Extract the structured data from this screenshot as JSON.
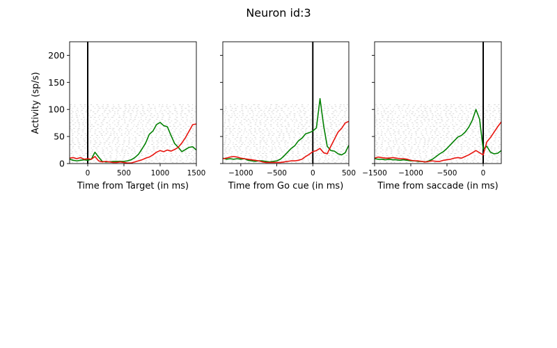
{
  "title": "Neuron id:3",
  "ylabel": "Activity (sp/s)",
  "colors": {
    "green": "#008000",
    "red": "#e8120c",
    "raster": "#c8c8c8",
    "event_line": "#000000"
  },
  "chart_data": [
    {
      "type": "line",
      "xlabel": "Time from Target (in ms)",
      "xlim": [
        -250,
        1500
      ],
      "ylim": [
        0,
        225
      ],
      "xticks": [
        0,
        500,
        1000,
        1500
      ],
      "yticks": [
        0,
        50,
        100,
        150,
        200
      ],
      "event_x": 0,
      "raster_ymax": 110,
      "series": [
        {
          "color": "green",
          "x": [
            -250,
            -200,
            -150,
            -100,
            -50,
            0,
            50,
            100,
            150,
            200,
            250,
            300,
            350,
            400,
            450,
            500,
            550,
            600,
            650,
            700,
            750,
            800,
            850,
            900,
            950,
            1000,
            1050,
            1100,
            1150,
            1200,
            1250,
            1300,
            1350,
            1400,
            1450,
            1500
          ],
          "y": [
            8,
            6,
            5,
            6,
            7,
            6,
            8,
            21,
            12,
            4,
            3,
            3,
            4,
            4,
            4,
            4,
            5,
            7,
            11,
            17,
            27,
            38,
            54,
            60,
            72,
            76,
            70,
            68,
            52,
            37,
            30,
            22,
            26,
            30,
            31,
            25
          ]
        },
        {
          "color": "red",
          "x": [
            -250,
            -200,
            -150,
            -100,
            -50,
            0,
            50,
            100,
            150,
            200,
            250,
            300,
            350,
            400,
            450,
            500,
            550,
            600,
            650,
            700,
            750,
            800,
            850,
            900,
            950,
            1000,
            1050,
            1100,
            1150,
            1200,
            1250,
            1300,
            1350,
            1400,
            1450,
            1500
          ],
          "y": [
            10,
            11,
            9,
            11,
            8,
            9,
            8,
            13,
            5,
            3,
            4,
            3,
            2,
            2,
            3,
            2,
            1,
            1,
            3,
            5,
            7,
            10,
            12,
            16,
            21,
            24,
            22,
            25,
            23,
            26,
            30,
            38,
            48,
            60,
            72,
            73
          ]
        }
      ]
    },
    {
      "type": "line",
      "xlabel": "Time from Go cue (in ms)",
      "xlim": [
        -1250,
        500
      ],
      "ylim": [
        0,
        225
      ],
      "xticks": [
        -1000,
        -500,
        0,
        500
      ],
      "yticks": [
        0,
        50,
        100,
        150,
        200
      ],
      "event_x": 0,
      "raster_ymax": 110,
      "series": [
        {
          "color": "green",
          "x": [
            -1250,
            -1200,
            -1150,
            -1100,
            -1050,
            -1000,
            -950,
            -900,
            -850,
            -800,
            -750,
            -700,
            -650,
            -600,
            -550,
            -500,
            -450,
            -400,
            -350,
            -300,
            -250,
            -200,
            -150,
            -100,
            -50,
            0,
            50,
            100,
            150,
            200,
            250,
            300,
            350,
            400,
            450,
            500
          ],
          "y": [
            10,
            8,
            9,
            8,
            9,
            8,
            9,
            6,
            5,
            4,
            5,
            5,
            4,
            3,
            4,
            5,
            8,
            14,
            21,
            28,
            33,
            42,
            47,
            55,
            57,
            60,
            66,
            120,
            70,
            32,
            24,
            23,
            18,
            16,
            20,
            34
          ]
        },
        {
          "color": "red",
          "x": [
            -1250,
            -1200,
            -1150,
            -1100,
            -1050,
            -1000,
            -950,
            -900,
            -850,
            -800,
            -750,
            -700,
            -650,
            -600,
            -550,
            -500,
            -450,
            -400,
            -350,
            -300,
            -250,
            -200,
            -150,
            -100,
            -50,
            0,
            50,
            100,
            150,
            200,
            250,
            300,
            350,
            400,
            450,
            500
          ],
          "y": [
            9,
            10,
            12,
            13,
            12,
            10,
            9,
            8,
            7,
            6,
            5,
            3,
            2,
            2,
            2,
            2,
            2,
            3,
            4,
            5,
            5,
            6,
            8,
            13,
            17,
            22,
            24,
            28,
            20,
            18,
            32,
            45,
            58,
            65,
            75,
            78
          ]
        }
      ]
    },
    {
      "type": "line",
      "xlabel": "Time from saccade (in ms)",
      "xlim": [
        -1500,
        250
      ],
      "ylim": [
        0,
        225
      ],
      "xticks": [
        -1500,
        -1000,
        -500,
        0
      ],
      "yticks": [
        0,
        50,
        100,
        150,
        200
      ],
      "event_x": 0,
      "raster_ymax": 110,
      "series": [
        {
          "color": "green",
          "x": [
            -1500,
            -1450,
            -1400,
            -1350,
            -1300,
            -1250,
            -1200,
            -1150,
            -1100,
            -1050,
            -1000,
            -950,
            -900,
            -850,
            -800,
            -750,
            -700,
            -650,
            -600,
            -550,
            -500,
            -450,
            -400,
            -350,
            -300,
            -250,
            -200,
            -150,
            -100,
            -50,
            0,
            50,
            100,
            150,
            200,
            250
          ],
          "y": [
            9,
            8,
            8,
            7,
            8,
            7,
            7,
            6,
            7,
            6,
            5,
            5,
            4,
            4,
            3,
            5,
            8,
            13,
            18,
            22,
            28,
            35,
            42,
            49,
            52,
            58,
            67,
            80,
            100,
            82,
            27,
            32,
            21,
            18,
            19,
            24
          ]
        },
        {
          "color": "red",
          "x": [
            -1500,
            -1450,
            -1400,
            -1350,
            -1300,
            -1250,
            -1200,
            -1150,
            -1100,
            -1050,
            -1000,
            -950,
            -900,
            -850,
            -800,
            -750,
            -700,
            -650,
            -600,
            -550,
            -500,
            -450,
            -400,
            -350,
            -300,
            -250,
            -200,
            -150,
            -100,
            -50,
            0,
            50,
            100,
            150,
            200,
            250
          ],
          "y": [
            10,
            12,
            11,
            10,
            10,
            11,
            10,
            9,
            9,
            8,
            6,
            5,
            5,
            4,
            3,
            4,
            5,
            4,
            4,
            6,
            7,
            8,
            10,
            11,
            10,
            13,
            16,
            20,
            24,
            20,
            16,
            40,
            48,
            58,
            68,
            77
          ]
        }
      ]
    }
  ]
}
